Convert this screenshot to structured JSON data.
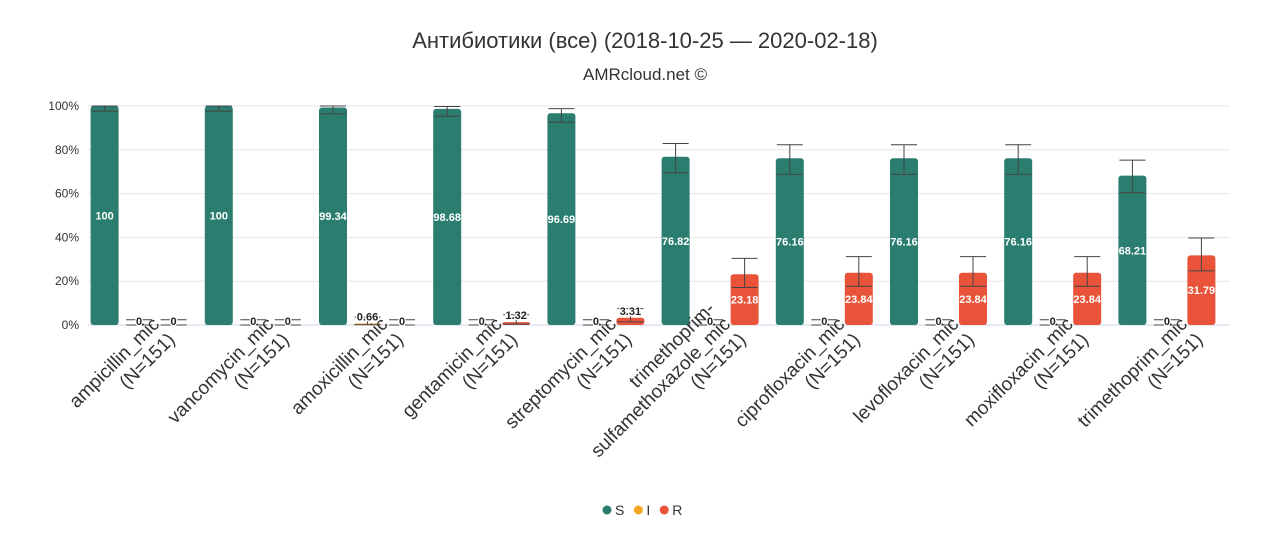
{
  "chart_data": {
    "type": "bar",
    "title": "Антибиотики (все) (2018-10-25 — 2020-02-18)",
    "subtitle": "AMRcloud.net ©",
    "categories": [
      [
        "ampicillin_mic",
        "(N=151)"
      ],
      [
        "vancomycin_mic",
        "(N=151)"
      ],
      [
        "amoxicillin_mic",
        "(N=151)"
      ],
      [
        "gentamicin_mic",
        "(N=151)"
      ],
      [
        "streptomycin_mic",
        "(N=151)"
      ],
      [
        "trimethoprim-",
        "sulfamethoxazole_mic",
        "(N=151)"
      ],
      [
        "ciprofloxacin_mic",
        "(N=151)"
      ],
      [
        "levofloxacin_mic",
        "(N=151)"
      ],
      [
        "moxifloxacin_mic",
        "(N=151)"
      ],
      [
        "trimethoprim_mic",
        "(N=151)"
      ]
    ],
    "series": [
      {
        "name": "S",
        "color": "#2a7d6f",
        "values": [
          100,
          100,
          99.34,
          98.68,
          96.69,
          76.82,
          76.16,
          76.16,
          76.16,
          68.21
        ],
        "ci_low": [
          97.6,
          97.6,
          96.4,
          95.3,
          92.6,
          69.5,
          68.8,
          68.8,
          68.8,
          60.4
        ],
        "ci_high": [
          100,
          100,
          100,
          99.8,
          98.8,
          82.9,
          82.3,
          82.3,
          82.3,
          75.3
        ]
      },
      {
        "name": "I",
        "color": "#f5a623",
        "values": [
          0,
          0,
          0.66,
          0,
          0,
          0,
          0,
          0,
          0,
          0
        ],
        "ci_low": [
          0,
          0,
          0.1,
          0,
          0,
          0,
          0,
          0,
          0,
          0
        ],
        "ci_high": [
          2.4,
          2.4,
          3.6,
          2.4,
          2.4,
          2.4,
          2.4,
          2.4,
          2.4,
          2.4
        ]
      },
      {
        "name": "R",
        "color": "#e8533a",
        "values": [
          0,
          0,
          0,
          1.32,
          3.31,
          23.18,
          23.84,
          23.84,
          23.84,
          31.79
        ],
        "ci_low": [
          0,
          0,
          0,
          0.4,
          1.4,
          17.1,
          17.7,
          17.7,
          17.7,
          24.7
        ],
        "ci_high": [
          2.4,
          2.4,
          2.4,
          4.7,
          7.5,
          30.4,
          31.2,
          31.2,
          31.2,
          39.7
        ]
      }
    ],
    "ylim": [
      0,
      100
    ],
    "yticks": [
      "0%",
      "20%",
      "40%",
      "60%",
      "80%",
      "100%"
    ],
    "grid": true,
    "legend_position": "bottom-center",
    "legend": [
      {
        "label": "S",
        "color": "#2a7d6f"
      },
      {
        "label": "I",
        "color": "#f5a623"
      },
      {
        "label": "R",
        "color": "#e8533a"
      }
    ]
  }
}
